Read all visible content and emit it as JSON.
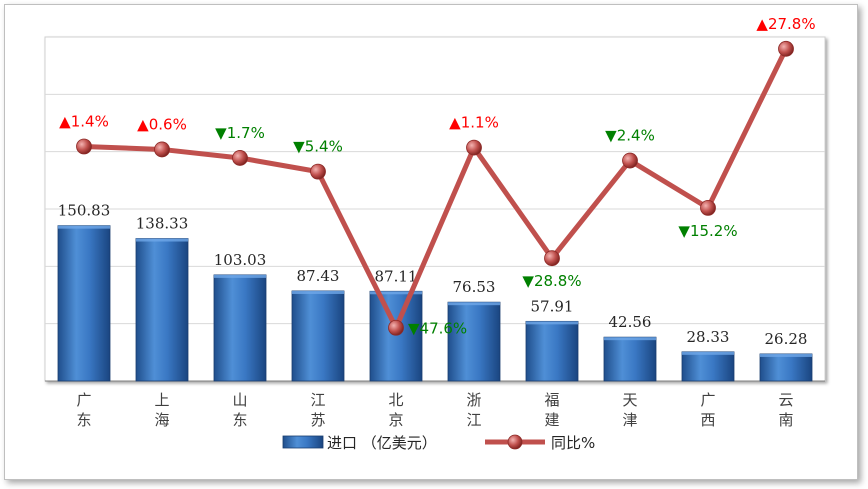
{
  "chart_data": {
    "type": "bar",
    "categories": [
      "广东",
      "上海",
      "山东",
      "江苏",
      "北京",
      "浙江",
      "福建",
      "天津",
      "广西",
      "云南"
    ],
    "series": [
      {
        "name": "进口（亿美元）",
        "type": "bar",
        "values": [
          150.83,
          138.33,
          103.03,
          87.43,
          87.11,
          76.53,
          57.91,
          42.56,
          28.33,
          26.28
        ],
        "labels": [
          "150.83",
          "138.33",
          "103.03",
          "87.43",
          "87.11",
          "76.53",
          "57.91",
          "42.56",
          "28.33",
          "26.28"
        ],
        "color": "#2e6db4"
      },
      {
        "name": "同比%",
        "type": "line",
        "values": [
          1.4,
          0.6,
          -1.7,
          -5.4,
          -47.6,
          1.1,
          -28.8,
          -2.4,
          -15.2,
          27.8
        ],
        "labels": [
          "▲1.4%",
          "▲0.6%",
          "▼1.7%",
          "▼5.4%",
          "▼47.6%",
          "▲1.1%",
          "▼28.8%",
          "▼2.4%",
          "▼15.2%",
          "▲27.8%"
        ],
        "color": "#c0504d"
      }
    ],
    "legend": {
      "position": "bottom",
      "bar_label": "进口 （亿美元）",
      "line_label": "同比%"
    },
    "colors": {
      "up": "#ff0000",
      "down": "#008000",
      "grid": "#d9d9d9",
      "axis": "#808080"
    },
    "grid": true
  }
}
